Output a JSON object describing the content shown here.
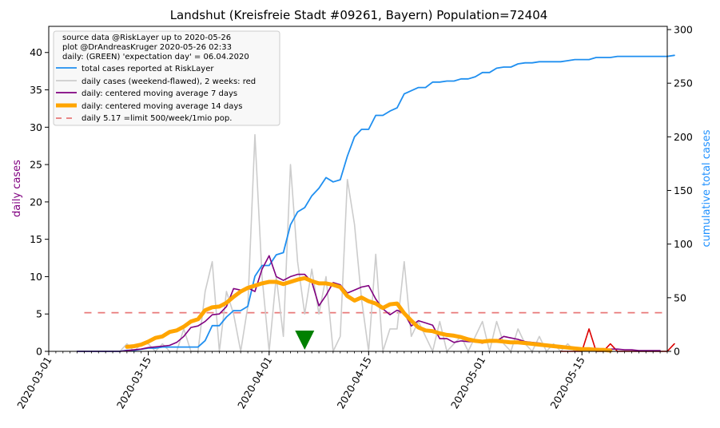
{
  "colors": {
    "total": "#1f8ff0",
    "daily_raw": "#cccccc",
    "daily_weekend": "#dd0000",
    "ma7": "#800080",
    "ma14": "#ffa500",
    "limit": "#e87878",
    "expectation": "#008000"
  },
  "chart_data": {
    "type": "line",
    "title": "Landshut (Kreisfreie Stadt #09261, Bayern) Population=72404",
    "ylabel_left": "daily cases",
    "ylabel_right": "cumulative total cases",
    "xlim": [
      0,
      87
    ],
    "ylim_left": [
      0,
      43.5
    ],
    "ylim_right": [
      0,
      303
    ],
    "yticks_left": [
      0,
      5,
      10,
      15,
      20,
      25,
      30,
      35,
      40
    ],
    "yticks_right": [
      0,
      50,
      100,
      150,
      200,
      250,
      300
    ],
    "xticks": [
      {
        "day": 0,
        "label": "2020-03-01"
      },
      {
        "day": 14,
        "label": "2020-03-15"
      },
      {
        "day": 31,
        "label": "2020-04-01"
      },
      {
        "day": 45,
        "label": "2020-04-15"
      },
      {
        "day": 61,
        "label": "2020-05-01"
      },
      {
        "day": 75,
        "label": "2020-05-15"
      }
    ],
    "legend": {
      "placement": "top-left",
      "header": [
        "source data @RiskLayer up to 2020-05-26",
        "plot @DrAndreasKruger 2020-05-26 02:33",
        "daily: (GREEN) 'expectation day' = 06.04.2020"
      ],
      "entries": [
        {
          "key": "total",
          "label": "total cases reported at RiskLayer"
        },
        {
          "key": "daily_raw",
          "label": "daily cases (weekend-flawed), 2 weeks: red"
        },
        {
          "key": "ma7",
          "label": "daily: centered moving average 7 days"
        },
        {
          "key": "ma14",
          "label": "daily: centered moving average 14 days"
        },
        {
          "key": "limit",
          "label": "daily 5.17 =limit 500/week/1mio pop."
        }
      ]
    },
    "limit_value": 5.17,
    "limit_range": [
      5,
      87
    ],
    "expectation_day": 36,
    "series": [
      {
        "name": "total cases reported at RiskLayer",
        "key": "total",
        "axis": "right",
        "x0": 4,
        "values": [
          0,
          0,
          0,
          0,
          0,
          0,
          0,
          1,
          1,
          2,
          3,
          3,
          4,
          4,
          4,
          4,
          4,
          4,
          10,
          24,
          24,
          32,
          38,
          38,
          42,
          70,
          80,
          80,
          90,
          92,
          118,
          130,
          134,
          145,
          152,
          162,
          158,
          160,
          182,
          200,
          207,
          207,
          220,
          220,
          224,
          227,
          240,
          243,
          246,
          246,
          251,
          251,
          252,
          252,
          254,
          254,
          256,
          260,
          260,
          264,
          265,
          265,
          268,
          269,
          269,
          270,
          270,
          270,
          270,
          271,
          272,
          272,
          272,
          274,
          274,
          274,
          275,
          275,
          275,
          275,
          275,
          275,
          275,
          275,
          276
        ]
      },
      {
        "name": "daily cases (weekend-flawed), 2 weeks: red",
        "key": "daily_raw",
        "axis": "left",
        "x0": 4,
        "values": [
          0,
          0,
          0,
          0,
          0,
          0,
          0,
          1,
          0,
          1,
          1,
          0,
          1,
          0,
          0,
          3,
          0,
          0,
          8,
          12,
          0,
          8,
          5,
          0,
          6,
          29,
          10,
          0,
          10,
          2,
          25,
          12,
          5,
          11,
          5,
          10,
          0,
          2,
          23,
          17,
          7,
          0,
          13,
          0,
          3,
          3,
          12,
          2,
          4,
          2,
          0,
          4,
          0,
          1,
          2,
          0,
          2,
          4,
          0,
          4,
          1,
          0,
          3,
          1,
          0,
          2,
          0,
          1,
          0,
          1,
          0,
          0,
          0,
          0,
          0,
          0,
          0,
          0,
          0,
          0,
          0,
          0,
          0,
          0,
          1
        ]
      },
      {
        "name": "daily cases (weekend-flawed), 2 weeks: red",
        "key": "daily_weekend",
        "axis": "left",
        "x0": 72,
        "values": [
          0,
          0,
          0,
          0,
          3,
          0,
          0,
          1,
          0,
          0,
          0,
          0,
          0,
          0,
          0,
          0,
          1
        ]
      },
      {
        "name": "daily: centered moving average 7 days",
        "key": "ma7",
        "axis": "left",
        "x0": 4,
        "values": [
          0,
          0,
          0,
          0,
          0,
          0,
          0,
          0.1,
          0.2,
          0.3,
          0.5,
          0.6,
          0.7,
          0.8,
          1.2,
          2.0,
          3.2,
          3.4,
          4.0,
          4.9,
          5.0,
          6.0,
          8.4,
          8.2,
          8.5,
          8.0,
          11.0,
          12.8,
          10.0,
          9.5,
          10.0,
          10.3,
          10.3,
          9.3,
          6.1,
          7.5,
          9.2,
          8.9,
          7.8,
          8.2,
          8.6,
          8.8,
          7.0,
          5.7,
          4.9,
          5.5,
          5.1,
          3.4,
          4.1,
          3.8,
          3.5,
          1.7,
          1.7,
          1.2,
          1.4,
          1.3,
          1.3,
          1.1,
          1.5,
          1.4,
          2.0,
          1.8,
          1.6,
          1.3,
          1.2,
          1.1,
          0.9,
          0.8,
          0.7,
          0.6,
          0.5,
          0.4,
          0.4,
          0.4,
          0.3,
          0.3,
          0.3,
          0.2,
          0.2,
          0.1,
          0.1,
          0.1,
          0.1
        ]
      },
      {
        "name": "daily: centered moving average 14 days",
        "key": "ma14",
        "axis": "left",
        "x0": 11,
        "values": [
          0.6,
          0.7,
          0.9,
          1.3,
          1.8,
          2.0,
          2.6,
          2.8,
          3.3,
          4.0,
          4.3,
          5.5,
          5.9,
          6.0,
          6.5,
          7.3,
          8.0,
          8.5,
          8.8,
          9.1,
          9.3,
          9.3,
          9.0,
          9.3,
          9.6,
          9.8,
          9.4,
          9.1,
          9.1,
          8.9,
          8.6,
          7.4,
          6.8,
          7.2,
          6.7,
          6.4,
          5.8,
          6.3,
          6.4,
          5.1,
          4.1,
          3.2,
          2.8,
          2.7,
          2.4,
          2.2,
          2.1,
          1.9,
          1.6,
          1.4,
          1.3,
          1.4,
          1.4,
          1.3,
          1.2,
          1.2,
          1.1,
          1.0,
          0.9,
          0.8,
          0.7,
          0.6,
          0.5,
          0.4,
          0.3,
          0.3,
          0.2,
          0.2,
          0.1
        ]
      }
    ]
  }
}
